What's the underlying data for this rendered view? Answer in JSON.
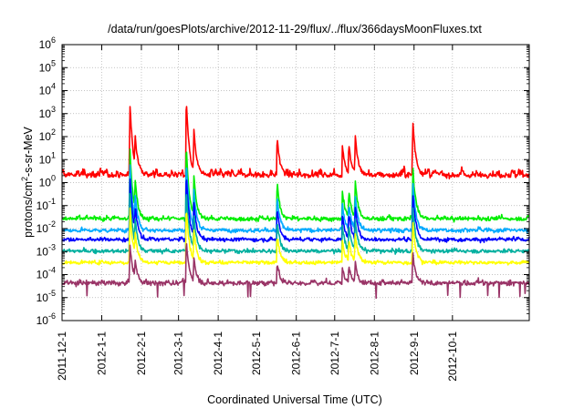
{
  "chart_data": {
    "type": "line",
    "title": "/data/run/goesPlots/archive/2012-11-29/flux/../flux/366daysMoonFluxes.txt",
    "xlabel": "Coordinated Universal Time (UTC)",
    "ylabel": {
      "prefix": "protons/cm",
      "sup": "2",
      "suffix": "-s-sr-MeV"
    },
    "xlim": [
      "2011-12-01",
      "2012-11-30"
    ],
    "ylim": [
      1e-06,
      1000000.0
    ],
    "yscale": "log",
    "grid": true,
    "x_ticks": [
      {
        "label": "2011-12-1",
        "date": "2011-12-01"
      },
      {
        "label": "2012-1-1",
        "date": "2012-01-01"
      },
      {
        "label": "2012-2-1",
        "date": "2012-02-01"
      },
      {
        "label": "2012-3-1",
        "date": "2012-03-01"
      },
      {
        "label": "2012-4-1",
        "date": "2012-04-01"
      },
      {
        "label": "2012-5-1",
        "date": "2012-05-01"
      },
      {
        "label": "2012-6-1",
        "date": "2012-06-01"
      },
      {
        "label": "2012-7-1",
        "date": "2012-07-01"
      },
      {
        "label": "2012-8-1",
        "date": "2012-08-01"
      },
      {
        "label": "2012-9-1",
        "date": "2012-09-01"
      },
      {
        "label": "2012-10-1",
        "date": "2012-10-01"
      }
    ],
    "y_ticks": [
      {
        "base": "10",
        "exp": "-6",
        "value": 1e-06
      },
      {
        "base": "10",
        "exp": "-5",
        "value": 1e-05
      },
      {
        "base": "10",
        "exp": "-4",
        "value": 0.0001
      },
      {
        "base": "10",
        "exp": "-3",
        "value": 0.001
      },
      {
        "base": "10",
        "exp": "-2",
        "value": 0.01
      },
      {
        "base": "10",
        "exp": "-1",
        "value": 0.1
      },
      {
        "base": "10",
        "exp": "0",
        "value": 1
      },
      {
        "base": "10",
        "exp": "1",
        "value": 10
      },
      {
        "base": "10",
        "exp": "2",
        "value": 100
      },
      {
        "base": "10",
        "exp": "3",
        "value": 1000
      },
      {
        "base": "10",
        "exp": "4",
        "value": 10000
      },
      {
        "base": "10",
        "exp": "5",
        "value": 100000
      },
      {
        "base": "10",
        "exp": "6",
        "value": 1000000
      }
    ],
    "events": [
      {
        "date": "2012-01-23",
        "peak_log10": 3.6
      },
      {
        "date": "2012-01-27",
        "peak_log10": 2.2
      },
      {
        "date": "2012-03-07",
        "peak_log10": 3.8
      },
      {
        "date": "2012-03-13",
        "peak_log10": 2.3
      },
      {
        "date": "2012-05-17",
        "peak_log10": 2.0
      },
      {
        "date": "2012-07-07",
        "peak_log10": 1.6
      },
      {
        "date": "2012-07-12",
        "peak_log10": 1.7
      },
      {
        "date": "2012-07-17",
        "peak_log10": 2.1
      },
      {
        "date": "2012-08-31",
        "peak_log10": 2.8
      }
    ],
    "series": [
      {
        "color": "#ff0000",
        "base_log10": 0.3,
        "noise": 0.5,
        "event_scale": 1.0
      },
      {
        "color": "#00ee00",
        "base_log10": -1.6,
        "noise": 0.25,
        "event_scale": 0.95
      },
      {
        "color": "#00aaff",
        "base_log10": -2.1,
        "noise": 0.2,
        "event_scale": 0.9
      },
      {
        "color": "#0000ff",
        "base_log10": -2.5,
        "noise": 0.2,
        "event_scale": 0.85
      },
      {
        "color": "#00b0a0",
        "base_log10": -3.0,
        "noise": 0.2,
        "event_scale": 0.8
      },
      {
        "color": "#ffff00",
        "base_log10": -3.5,
        "noise": 0.15,
        "event_scale": 0.75
      },
      {
        "color": "#993366",
        "base_log10": -4.4,
        "noise": 0.35,
        "event_scale": 0.55
      }
    ]
  }
}
